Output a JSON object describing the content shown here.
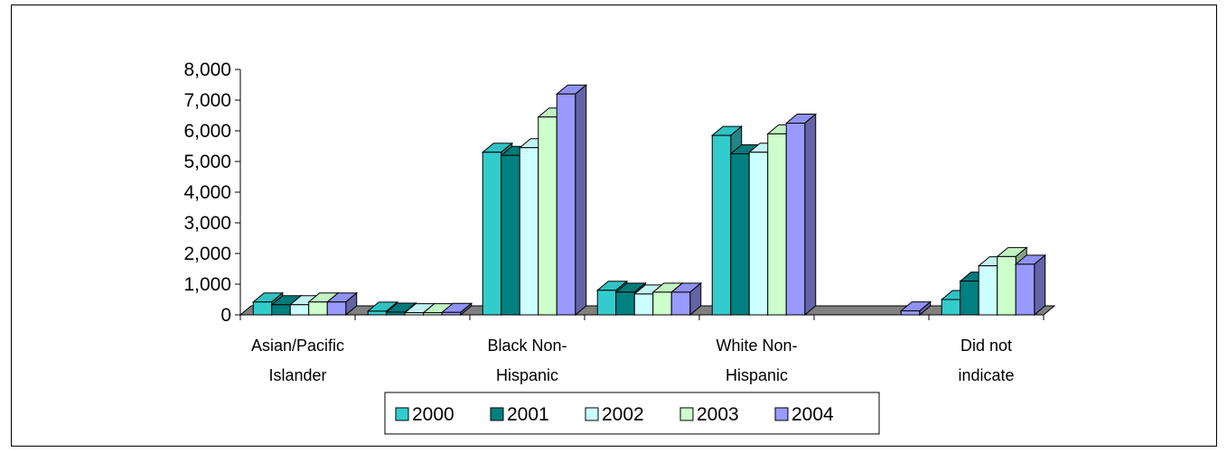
{
  "chart_data": {
    "type": "bar",
    "title": "",
    "xlabel": "",
    "ylabel": "",
    "ylim": [
      0,
      8000
    ],
    "yticks": [
      "0",
      "1,000",
      "2,000",
      "3,000",
      "4,000",
      "5,000",
      "6,000",
      "7,000",
      "8,000"
    ],
    "categories": [
      {
        "line1": "Asian/Pacific",
        "line2": "Islander"
      },
      {
        "line1": "",
        "line2": ""
      },
      {
        "line1": "Black Non-",
        "line2": "Hispanic"
      },
      {
        "line1": "",
        "line2": ""
      },
      {
        "line1": "White Non-",
        "line2": "Hispanic"
      },
      {
        "line1": "",
        "line2": ""
      },
      {
        "line1": "Did not",
        "line2": "indicate"
      }
    ],
    "series": [
      {
        "name": "2000",
        "color": "#33CCCC",
        "values": [
          420,
          120,
          5300,
          800,
          5850,
          0,
          500
        ]
      },
      {
        "name": "2001",
        "color": "#008080",
        "values": [
          330,
          90,
          5200,
          740,
          5250,
          0,
          1100
        ]
      },
      {
        "name": "2002",
        "color": "#CCFFFF",
        "values": [
          330,
          70,
          5450,
          680,
          5300,
          0,
          1600
        ]
      },
      {
        "name": "2003",
        "color": "#CCFFCC",
        "values": [
          420,
          70,
          6450,
          740,
          5900,
          0,
          1900
        ]
      },
      {
        "name": "2004",
        "color": "#9999FF",
        "values": [
          420,
          80,
          7200,
          740,
          6250,
          130,
          1650
        ]
      }
    ],
    "grid": false,
    "legend_position": "bottom"
  }
}
